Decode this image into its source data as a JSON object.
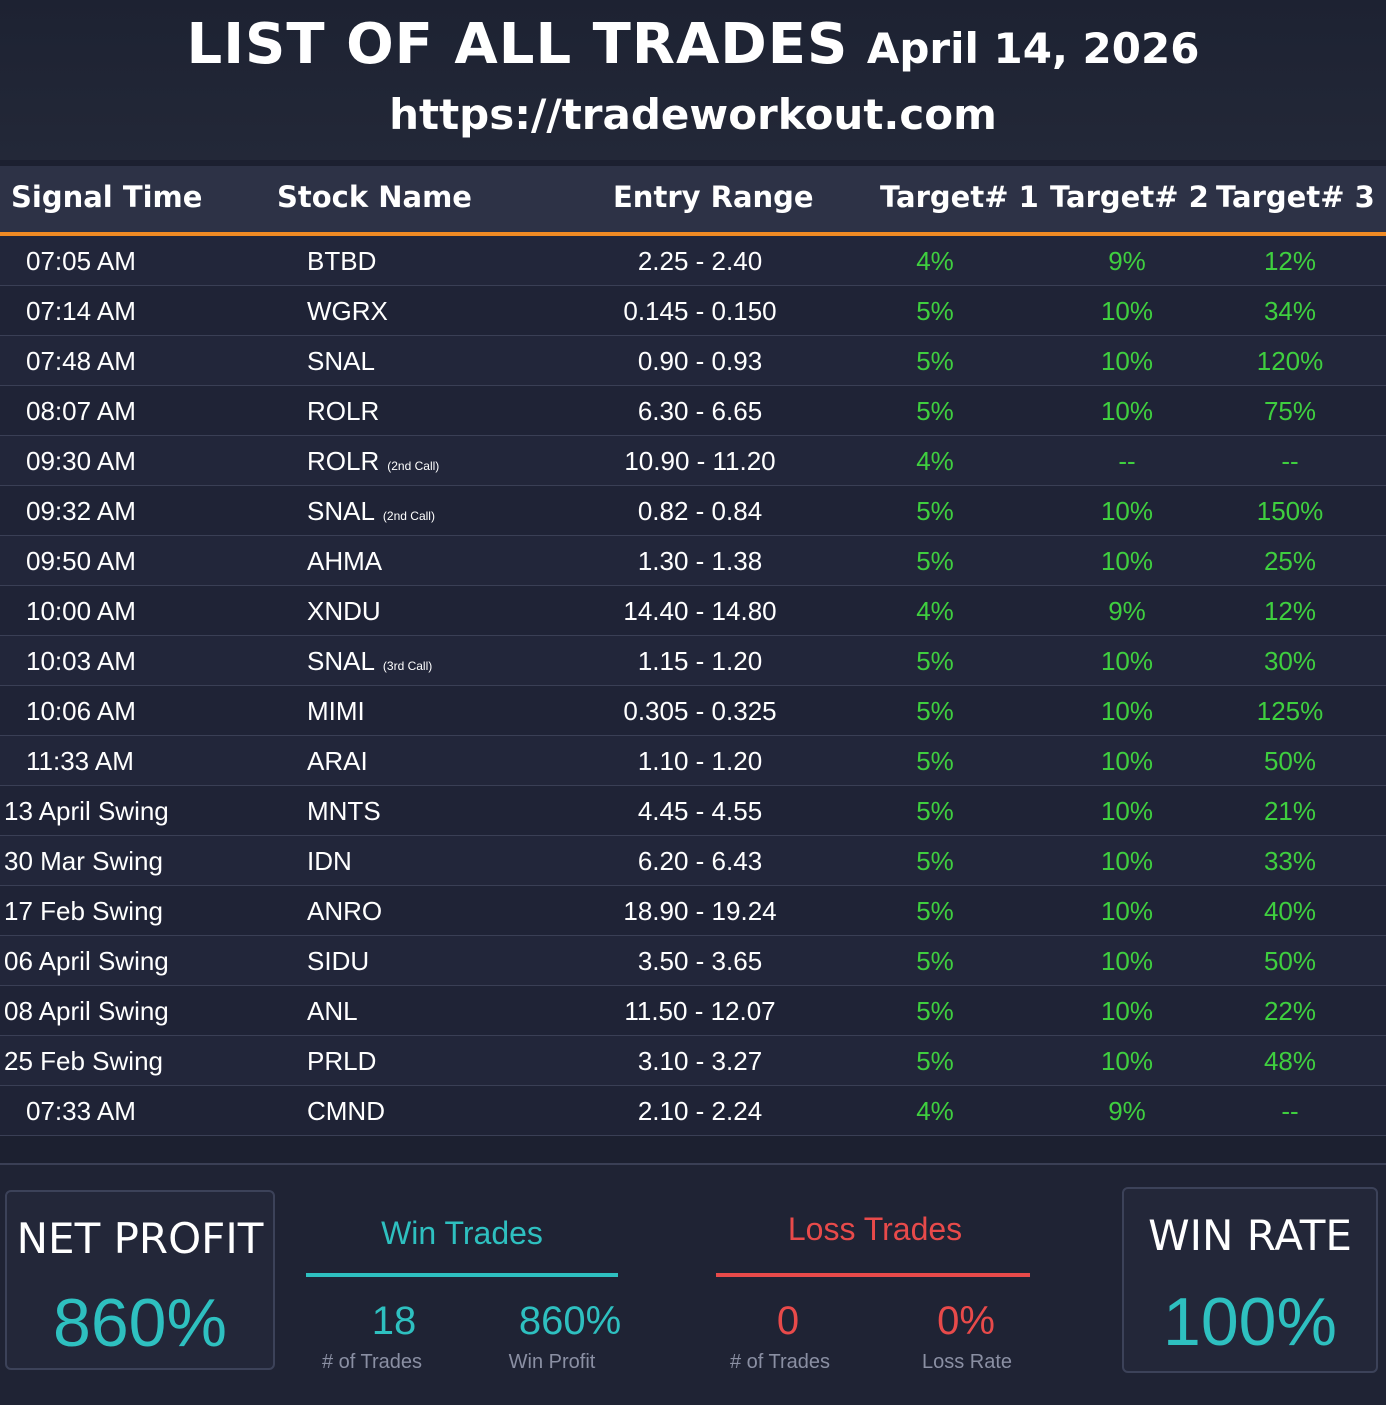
{
  "header": {
    "title": "LIST OF ALL TRADES",
    "date": "April 14, 2026",
    "site": "https://tradeworkout.com"
  },
  "columns": [
    "Signal Time",
    "Stock Name",
    "Entry Range",
    "Target# 1",
    "Target# 2",
    "Target# 3"
  ],
  "rows": [
    {
      "time": "07:05 AM",
      "stock": "BTBD",
      "note": "",
      "entry": "2.25 - 2.40",
      "t1": "4%",
      "t2": "9%",
      "t3": "12%"
    },
    {
      "time": "07:14 AM",
      "stock": "WGRX",
      "note": "",
      "entry": "0.145 - 0.150",
      "t1": "5%",
      "t2": "10%",
      "t3": "34%"
    },
    {
      "time": "07:48 AM",
      "stock": "SNAL",
      "note": "",
      "entry": "0.90 - 0.93",
      "t1": "5%",
      "t2": "10%",
      "t3": "120%"
    },
    {
      "time": "08:07 AM",
      "stock": "ROLR",
      "note": "",
      "entry": "6.30 - 6.65",
      "t1": "5%",
      "t2": "10%",
      "t3": "75%"
    },
    {
      "time": "09:30 AM",
      "stock": "ROLR",
      "note": "(2nd Call)",
      "entry": "10.90 - 11.20",
      "t1": "4%",
      "t2": "--",
      "t3": "--"
    },
    {
      "time": "09:32 AM",
      "stock": "SNAL",
      "note": "(2nd Call)",
      "entry": "0.82 - 0.84",
      "t1": "5%",
      "t2": "10%",
      "t3": "150%"
    },
    {
      "time": "09:50 AM",
      "stock": "AHMA",
      "note": "",
      "entry": "1.30 - 1.38",
      "t1": "5%",
      "t2": "10%",
      "t3": "25%"
    },
    {
      "time": "10:00 AM",
      "stock": "XNDU",
      "note": "",
      "entry": "14.40 - 14.80",
      "t1": "4%",
      "t2": "9%",
      "t3": "12%"
    },
    {
      "time": "10:03 AM",
      "stock": "SNAL",
      "note": "(3rd Call)",
      "entry": "1.15 - 1.20",
      "t1": "5%",
      "t2": "10%",
      "t3": "30%"
    },
    {
      "time": "10:06 AM",
      "stock": "MIMI",
      "note": "",
      "entry": "0.305 - 0.325",
      "t1": "5%",
      "t2": "10%",
      "t3": "125%"
    },
    {
      "time": "11:33 AM",
      "stock": "ARAI",
      "note": "",
      "entry": "1.10 - 1.20",
      "t1": "5%",
      "t2": "10%",
      "t3": "50%"
    },
    {
      "time": "13 April Swing",
      "stock": "MNTS",
      "note": "",
      "entry": "4.45 - 4.55",
      "t1": "5%",
      "t2": "10%",
      "t3": "21%"
    },
    {
      "time": "30 Mar Swing",
      "stock": "IDN",
      "note": "",
      "entry": "6.20 - 6.43",
      "t1": "5%",
      "t2": "10%",
      "t3": "33%"
    },
    {
      "time": "17 Feb Swing",
      "stock": "ANRO",
      "note": "",
      "entry": "18.90 - 19.24",
      "t1": "5%",
      "t2": "10%",
      "t3": "40%"
    },
    {
      "time": "06 April Swing",
      "stock": "SIDU",
      "note": "",
      "entry": "3.50 - 3.65",
      "t1": "5%",
      "t2": "10%",
      "t3": "50%"
    },
    {
      "time": "08 April Swing",
      "stock": "ANL",
      "note": "",
      "entry": "11.50 - 12.07",
      "t1": "5%",
      "t2": "10%",
      "t3": "22%"
    },
    {
      "time": "25 Feb Swing",
      "stock": "PRLD",
      "note": "",
      "entry": "3.10 - 3.27",
      "t1": "5%",
      "t2": "10%",
      "t3": "48%"
    },
    {
      "time": "07:33 AM",
      "stock": "CMND",
      "note": "",
      "entry": "2.10 - 2.24",
      "t1": "4%",
      "t2": "9%",
      "t3": "--"
    }
  ],
  "summary": {
    "net_profit_label": "NET PROFIT",
    "net_profit_value": "860%",
    "win_title": "Win Trades",
    "win_count": "18",
    "win_count_label": "# of Trades",
    "win_profit": "860%",
    "win_profit_label": "Win Profit",
    "loss_title": "Loss Trades",
    "loss_count": "0",
    "loss_count_label": "# of Trades",
    "loss_rate": "0%",
    "loss_rate_label": "Loss Rate",
    "win_rate_label": "WIN RATE",
    "win_rate_value": "100%"
  },
  "colors": {
    "accent_orange": "#f08a24",
    "target_green": "#3fcf3f",
    "teal": "#2ec0c0",
    "loss_red": "#e84a4a"
  }
}
